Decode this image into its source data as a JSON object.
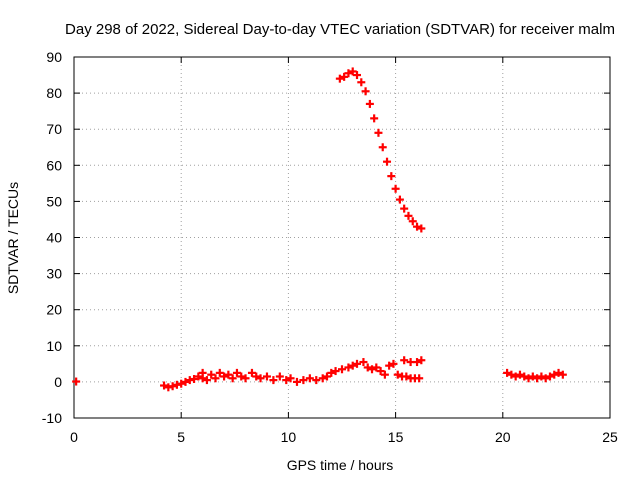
{
  "chart_data": {
    "type": "scatter",
    "title": "Day 298 of 2022, Sidereal Day-to-day VTEC variation (SDTVAR) for receiver malm",
    "xlabel": "GPS time / hours",
    "ylabel": "SDTVAR / TECUs",
    "xlim": [
      0,
      25
    ],
    "ylim": [
      -10,
      90
    ],
    "xticks": [
      "0",
      "5",
      "10",
      "15",
      "20",
      "25"
    ],
    "yticks": [
      "-10",
      "0",
      "10",
      "20",
      "30",
      "40",
      "50",
      "60",
      "70",
      "80",
      "90"
    ],
    "grid": true,
    "marker": "plus",
    "marker_color": "#ff0000",
    "series": [
      {
        "name": "SDTVAR",
        "points": [
          [
            0.1,
            0.1
          ],
          [
            4.2,
            -1.0
          ],
          [
            4.4,
            -1.5
          ],
          [
            4.6,
            -1.2
          ],
          [
            4.8,
            -0.8
          ],
          [
            5.0,
            -0.5
          ],
          [
            5.2,
            0.0
          ],
          [
            5.4,
            0.5
          ],
          [
            5.6,
            0.8
          ],
          [
            5.8,
            1.5
          ],
          [
            6.0,
            2.5
          ],
          [
            6.0,
            1.0
          ],
          [
            6.2,
            0.5
          ],
          [
            6.4,
            2.0
          ],
          [
            6.6,
            1.0
          ],
          [
            6.8,
            2.5
          ],
          [
            7.0,
            1.5
          ],
          [
            7.2,
            2.0
          ],
          [
            7.4,
            1.0
          ],
          [
            7.6,
            2.5
          ],
          [
            7.8,
            1.5
          ],
          [
            8.0,
            1.0
          ],
          [
            8.3,
            2.5
          ],
          [
            8.5,
            1.5
          ],
          [
            8.7,
            1.0
          ],
          [
            9.0,
            1.5
          ],
          [
            9.3,
            0.5
          ],
          [
            9.6,
            1.5
          ],
          [
            9.9,
            0.5
          ],
          [
            10.1,
            1.0
          ],
          [
            10.4,
            0.0
          ],
          [
            10.7,
            0.5
          ],
          [
            11.0,
            1.0
          ],
          [
            11.3,
            0.5
          ],
          [
            11.6,
            1.0
          ],
          [
            11.8,
            1.5
          ],
          [
            12.0,
            2.5
          ],
          [
            12.2,
            3.0
          ],
          [
            12.5,
            3.5
          ],
          [
            12.8,
            4.0
          ],
          [
            13.0,
            4.5
          ],
          [
            13.2,
            5.0
          ],
          [
            13.5,
            5.5
          ],
          [
            13.7,
            4.0
          ],
          [
            13.9,
            3.5
          ],
          [
            14.1,
            4.0
          ],
          [
            14.3,
            3.0
          ],
          [
            14.5,
            2.0
          ],
          [
            14.7,
            4.5
          ],
          [
            14.9,
            5.0
          ],
          [
            15.1,
            2.0
          ],
          [
            15.3,
            1.5
          ],
          [
            15.5,
            1.5
          ],
          [
            15.7,
            1.0
          ],
          [
            15.9,
            1.0
          ],
          [
            16.1,
            1.0
          ],
          [
            15.4,
            6.0
          ],
          [
            15.7,
            5.5
          ],
          [
            16.0,
            5.5
          ],
          [
            16.2,
            6.0
          ],
          [
            12.4,
            84.0
          ],
          [
            12.6,
            84.5
          ],
          [
            12.8,
            85.5
          ],
          [
            13.0,
            86.0
          ],
          [
            13.2,
            85.0
          ],
          [
            13.4,
            83.0
          ],
          [
            13.6,
            80.5
          ],
          [
            13.8,
            77.0
          ],
          [
            14.0,
            73.0
          ],
          [
            14.2,
            69.0
          ],
          [
            14.4,
            65.0
          ],
          [
            14.6,
            61.0
          ],
          [
            14.8,
            57.0
          ],
          [
            15.0,
            53.5
          ],
          [
            15.2,
            50.5
          ],
          [
            15.4,
            48.0
          ],
          [
            15.6,
            46.0
          ],
          [
            15.8,
            44.5
          ],
          [
            16.0,
            43.0
          ],
          [
            16.2,
            42.5
          ],
          [
            20.2,
            2.5
          ],
          [
            20.4,
            2.0
          ],
          [
            20.6,
            1.5
          ],
          [
            20.8,
            2.0
          ],
          [
            21.0,
            1.5
          ],
          [
            21.2,
            1.0
          ],
          [
            21.4,
            1.5
          ],
          [
            21.6,
            1.0
          ],
          [
            21.8,
            1.5
          ],
          [
            22.0,
            1.0
          ],
          [
            22.2,
            1.5
          ],
          [
            22.4,
            2.0
          ],
          [
            22.6,
            2.5
          ],
          [
            22.8,
            2.0
          ]
        ]
      }
    ]
  }
}
